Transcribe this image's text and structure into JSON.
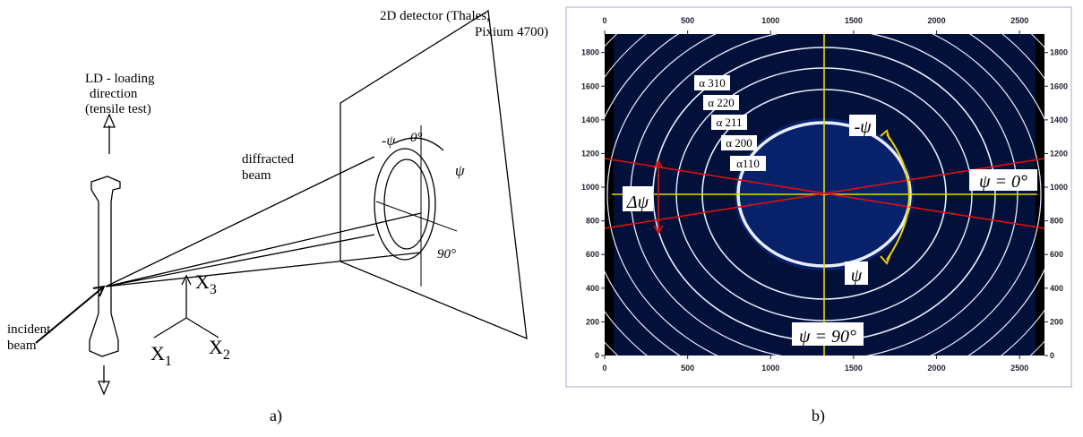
{
  "panel_a": {
    "caption": "a)",
    "ld_label": [
      "LD - loading",
      "direction",
      "(tensile test)"
    ],
    "detector_label": [
      "2D detector (Thales,",
      "Pixium 4700)"
    ],
    "diffracted_label": [
      "diffracted",
      "beam"
    ],
    "incident_label": [
      "incident",
      "beam"
    ],
    "minus_psi": "-ψ",
    "zero": "0°",
    "psi": "ψ",
    "ninety": "90°",
    "axes": [
      {
        "letter": "X",
        "sub": "3"
      },
      {
        "letter": "X",
        "sub": "1"
      },
      {
        "letter": "X",
        "sub": "2"
      }
    ]
  },
  "panel_b": {
    "caption": "b)",
    "xlim": [
      0,
      2650
    ],
    "ylim": [
      0,
      1910
    ],
    "xticks": [
      0,
      500,
      1000,
      1500,
      2000,
      2500
    ],
    "yticks": [
      0,
      200,
      400,
      600,
      800,
      1000,
      1200,
      1400,
      1600,
      1800
    ],
    "ring_labels": [
      "α 310",
      "α 220",
      "α 211",
      "α 200",
      "α110"
    ],
    "minus_psi": "-ψ",
    "psi_zero": "ψ = 0°",
    "delta_psi": "Δψ",
    "psi": "ψ",
    "psi_ninety": "ψ = 90°"
  }
}
